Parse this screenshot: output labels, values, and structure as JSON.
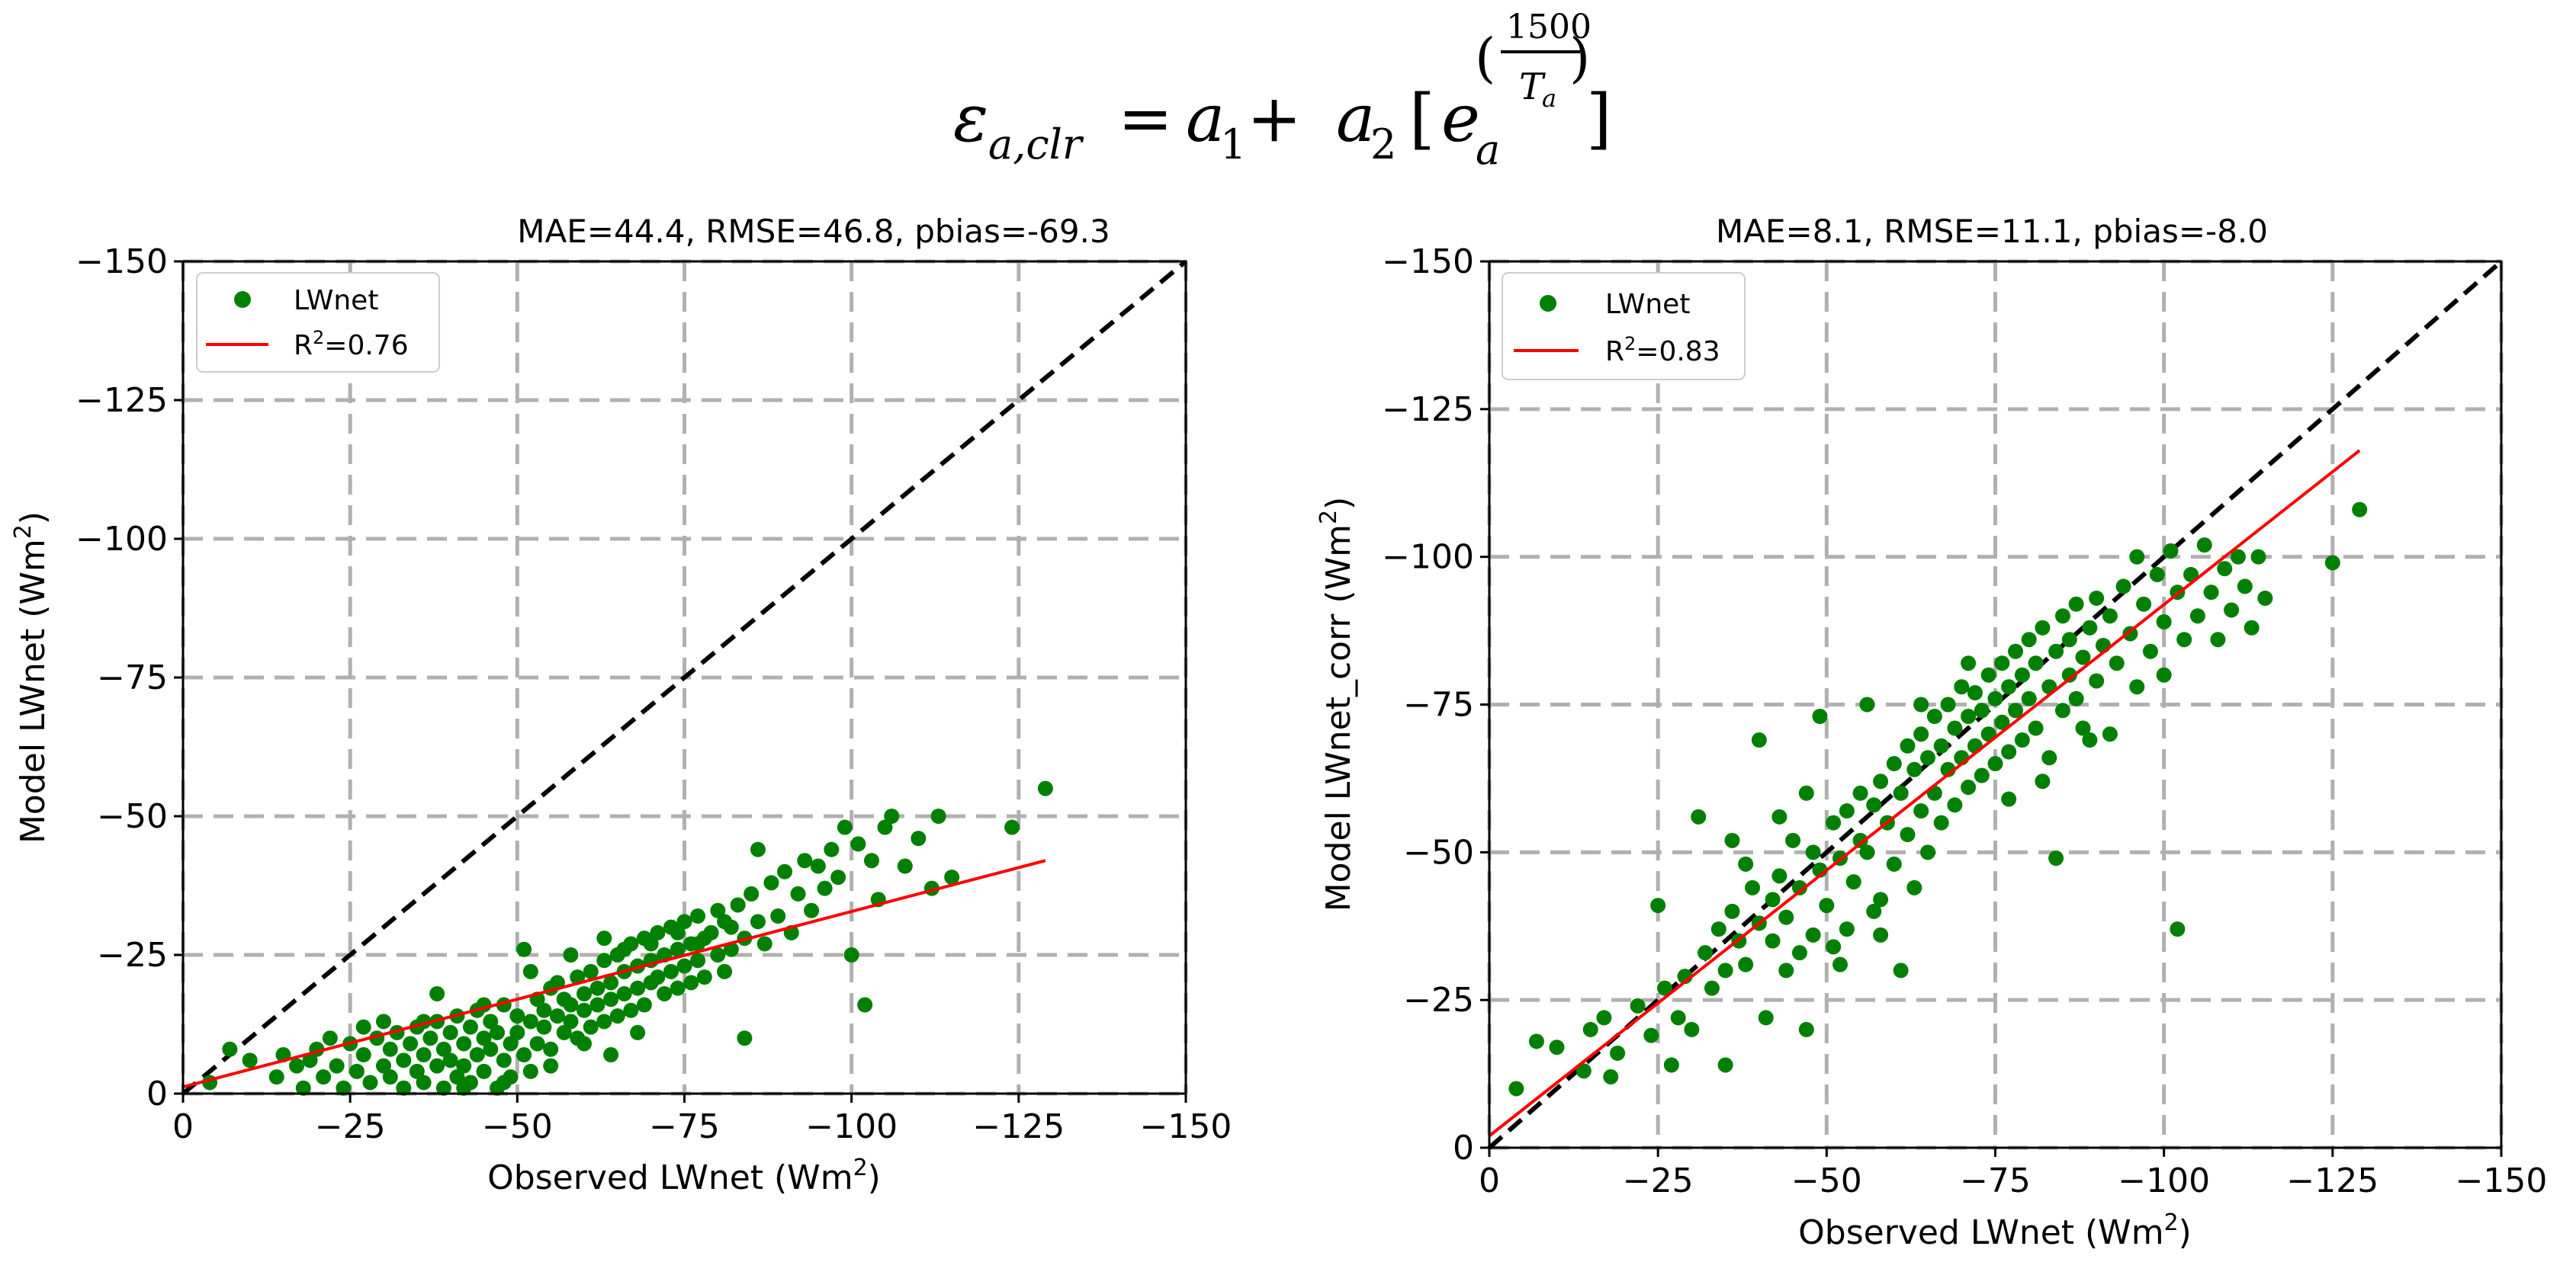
{
  "equation": {
    "lhs": "ε",
    "lhs_sub": "a,clr",
    "eq": "= ",
    "a1": "a",
    "a1_sub": "1",
    "plus": " + ",
    "a2": "a",
    "a2_sub": "2",
    "open_bracket": "[",
    "e": "e",
    "e_sub": "a",
    "exp_open": "(",
    "exp_num": "1500",
    "exp_den": "T",
    "exp_den_sub": "a",
    "exp_close": ")",
    "close_bracket": "]"
  },
  "colors": {
    "points": "#008000",
    "fit": "#ff0000",
    "identity": "#000000",
    "grid": "#b0b0b0"
  },
  "chart_data": [
    {
      "type": "scatter",
      "title": "MAE=44.4, RMSE=46.8, pbias=-69.3",
      "xlabel": "Observed LWnet (Wm",
      "ylabel": "Model LWnet (Wm",
      "label_sup": "2",
      "label_close": ")",
      "xlim": [
        0,
        -150
      ],
      "ylim": [
        0,
        -150
      ],
      "xticks": [
        0,
        -25,
        -50,
        -75,
        -100,
        -125,
        -150
      ],
      "yticks": [
        0,
        -25,
        -50,
        -75,
        -100,
        -125,
        -150
      ],
      "tick_labels": [
        "0",
        "−25",
        "−50",
        "−75",
        "−100",
        "−125",
        "−150"
      ],
      "grid": true,
      "legend": {
        "position": "top-left",
        "points_label": "LWnet",
        "fit_label_prefix": "R",
        "fit_label_sup": "2",
        "fit_label_suffix": "=0.76"
      },
      "fit_line": {
        "x": [
          0,
          -129
        ],
        "y": [
          -1.2,
          -42
        ]
      },
      "identity_line": {
        "x": [
          0,
          -150
        ],
        "y": [
          0,
          -150
        ]
      },
      "points": [
        [
          -4,
          -2
        ],
        [
          -7,
          -8
        ],
        [
          -10,
          -6
        ],
        [
          -14,
          -3
        ],
        [
          -15,
          -7
        ],
        [
          -17,
          -5
        ],
        [
          -18,
          -1
        ],
        [
          -19,
          -6
        ],
        [
          -20,
          -8
        ],
        [
          -21,
          -3
        ],
        [
          -23,
          -5
        ],
        [
          -24,
          -1
        ],
        [
          -25,
          -9
        ],
        [
          -26,
          -4
        ],
        [
          -27,
          -7
        ],
        [
          -28,
          -2
        ],
        [
          -29,
          -10
        ],
        [
          -30,
          -5
        ],
        [
          -31,
          -3
        ],
        [
          -31,
          -8
        ],
        [
          -32,
          -11
        ],
        [
          -33,
          -6
        ],
        [
          -33,
          -1
        ],
        [
          -34,
          -9
        ],
        [
          -35,
          -4
        ],
        [
          -35,
          -12
        ],
        [
          -36,
          -7
        ],
        [
          -36,
          -2
        ],
        [
          -37,
          -10
        ],
        [
          -38,
          -5
        ],
        [
          -38,
          -13
        ],
        [
          -39,
          -8
        ],
        [
          -39,
          -1
        ],
        [
          -40,
          -11
        ],
        [
          -40,
          -6
        ],
        [
          -41,
          -3
        ],
        [
          -41,
          -14
        ],
        [
          -42,
          -9
        ],
        [
          -42,
          -5
        ],
        [
          -43,
          -12
        ],
        [
          -43,
          -2
        ],
        [
          -44,
          -7
        ],
        [
          -44,
          -15
        ],
        [
          -45,
          -10
        ],
        [
          -45,
          -4
        ],
        [
          -46,
          -13
        ],
        [
          -46,
          -8
        ],
        [
          -47,
          -1
        ],
        [
          -47,
          -11
        ],
        [
          -48,
          -6
        ],
        [
          -48,
          -16
        ],
        [
          -49,
          -9
        ],
        [
          -49,
          -3
        ],
        [
          -50,
          -14
        ],
        [
          -50,
          -11
        ],
        [
          -51,
          -7
        ],
        [
          -51,
          -26
        ],
        [
          -52,
          -13
        ],
        [
          -52,
          -4
        ],
        [
          -53,
          -17
        ],
        [
          -53,
          -9
        ],
        [
          -54,
          -15
        ],
        [
          -54,
          -12
        ],
        [
          -55,
          -19
        ],
        [
          -55,
          -8
        ],
        [
          -56,
          -14
        ],
        [
          -56,
          -20
        ],
        [
          -57,
          -11
        ],
        [
          -57,
          -17
        ],
        [
          -58,
          -16
        ],
        [
          -58,
          -13
        ],
        [
          -59,
          -21
        ],
        [
          -59,
          -10
        ],
        [
          -60,
          -18
        ],
        [
          -60,
          -15
        ],
        [
          -61,
          -22
        ],
        [
          -61,
          -12
        ],
        [
          -62,
          -19
        ],
        [
          -62,
          -16
        ],
        [
          -63,
          -24
        ],
        [
          -63,
          -13
        ],
        [
          -64,
          -20
        ],
        [
          -64,
          -17
        ],
        [
          -65,
          -25
        ],
        [
          -65,
          -14
        ],
        [
          -66,
          -22
        ],
        [
          -66,
          -18
        ],
        [
          -67,
          -27
        ],
        [
          -67,
          -15
        ],
        [
          -68,
          -23
        ],
        [
          -68,
          -19
        ],
        [
          -69,
          -28
        ],
        [
          -69,
          -16
        ],
        [
          -70,
          -24
        ],
        [
          -70,
          -20
        ],
        [
          -71,
          -29
        ],
        [
          -71,
          -21
        ],
        [
          -72,
          -25
        ],
        [
          -72,
          -18
        ],
        [
          -73,
          -30
        ],
        [
          -73,
          -22
        ],
        [
          -74,
          -26
        ],
        [
          -74,
          -19
        ],
        [
          -75,
          -31
        ],
        [
          -75,
          -23
        ],
        [
          -76,
          -27
        ],
        [
          -76,
          -20
        ],
        [
          -77,
          -32
        ],
        [
          -77,
          -24
        ],
        [
          -78,
          -28
        ],
        [
          -78,
          -21
        ],
        [
          -79,
          -29
        ],
        [
          -80,
          -25
        ],
        [
          -80,
          -33
        ],
        [
          -81,
          -22
        ],
        [
          -82,
          -30
        ],
        [
          -82,
          -26
        ],
        [
          -83,
          -34
        ],
        [
          -84,
          -10
        ],
        [
          -84,
          -28
        ],
        [
          -85,
          -36
        ],
        [
          -86,
          -31
        ],
        [
          -86,
          -44
        ],
        [
          -87,
          -27
        ],
        [
          -88,
          -38
        ],
        [
          -89,
          -32
        ],
        [
          -90,
          -40
        ],
        [
          -91,
          -29
        ],
        [
          -92,
          -36
        ],
        [
          -93,
          -42
        ],
        [
          -94,
          -33
        ],
        [
          -95,
          -41
        ],
        [
          -96,
          -37
        ],
        [
          -97,
          -44
        ],
        [
          -98,
          -39
        ],
        [
          -99,
          -48
        ],
        [
          -100,
          -25
        ],
        [
          -101,
          -45
        ],
        [
          -102,
          -16
        ],
        [
          -103,
          -42
        ],
        [
          -104,
          -35
        ],
        [
          -105,
          -48
        ],
        [
          -106,
          -50
        ],
        [
          -108,
          -41
        ],
        [
          -110,
          -46
        ],
        [
          -112,
          -37
        ],
        [
          -113,
          -50
        ],
        [
          -115,
          -39
        ],
        [
          -124,
          -48
        ],
        [
          -129,
          -55
        ],
        [
          -38,
          -18
        ],
        [
          -45,
          -16
        ],
        [
          -52,
          -22
        ],
        [
          -58,
          -25
        ],
        [
          -63,
          -28
        ],
        [
          -66,
          -26
        ],
        [
          -70,
          -27
        ],
        [
          -74,
          -29
        ],
        [
          -77,
          -27
        ],
        [
          -81,
          -31
        ],
        [
          -60,
          -9
        ],
        [
          -55,
          -5
        ],
        [
          -48,
          -2
        ],
        [
          -42,
          -1
        ],
        [
          -36,
          -13
        ],
        [
          -30,
          -13
        ],
        [
          -27,
          -12
        ],
        [
          -22,
          -10
        ],
        [
          -64,
          -7
        ],
        [
          -68,
          -11
        ]
      ]
    },
    {
      "type": "scatter",
      "title": "MAE=8.1, RMSE=11.1, pbias=-8.0",
      "xlabel": "Observed LWnet (Wm",
      "ylabel": "Model LWnet_corr (Wm",
      "label_sup": "2",
      "label_close": ")",
      "xlim": [
        0,
        -150
      ],
      "ylim": [
        0,
        -150
      ],
      "xticks": [
        0,
        -25,
        -50,
        -75,
        -100,
        -125,
        -150
      ],
      "yticks": [
        0,
        -25,
        -50,
        -75,
        -100,
        -125,
        -150
      ],
      "tick_labels": [
        "0",
        "−25",
        "−50",
        "−75",
        "−100",
        "−125",
        "−150"
      ],
      "grid": true,
      "legend": {
        "position": "top-left",
        "points_label": "LWnet",
        "fit_label_prefix": "R",
        "fit_label_sup": "2",
        "fit_label_suffix": "=0.83"
      },
      "fit_line": {
        "x": [
          0,
          -129
        ],
        "y": [
          -2,
          -118
        ]
      },
      "identity_line": {
        "x": [
          0,
          -150
        ],
        "y": [
          0,
          -150
        ]
      },
      "points": [
        [
          -4,
          -10
        ],
        [
          -7,
          -18
        ],
        [
          -10,
          -17
        ],
        [
          -14,
          -13
        ],
        [
          -15,
          -20
        ],
        [
          -17,
          -22
        ],
        [
          -18,
          -12
        ],
        [
          -19,
          -16
        ],
        [
          -22,
          -24
        ],
        [
          -24,
          -19
        ],
        [
          -25,
          -41
        ],
        [
          -26,
          -27
        ],
        [
          -27,
          -14
        ],
        [
          -28,
          -22
        ],
        [
          -29,
          -29
        ],
        [
          -30,
          -20
        ],
        [
          -31,
          -56
        ],
        [
          -32,
          -33
        ],
        [
          -33,
          -27
        ],
        [
          -34,
          -37
        ],
        [
          -35,
          -30
        ],
        [
          -35,
          -14
        ],
        [
          -36,
          -40
        ],
        [
          -37,
          -35
        ],
        [
          -38,
          -48
        ],
        [
          -38,
          -31
        ],
        [
          -39,
          -44
        ],
        [
          -40,
          -69
        ],
        [
          -40,
          -38
        ],
        [
          -41,
          -22
        ],
        [
          -42,
          -42
        ],
        [
          -42,
          -35
        ],
        [
          -43,
          -46
        ],
        [
          -44,
          -30
        ],
        [
          -44,
          -39
        ],
        [
          -45,
          -52
        ],
        [
          -46,
          -33
        ],
        [
          -46,
          -44
        ],
        [
          -47,
          -20
        ],
        [
          -48,
          -50
        ],
        [
          -48,
          -36
        ],
        [
          -49,
          -73
        ],
        [
          -49,
          -47
        ],
        [
          -50,
          -41
        ],
        [
          -51,
          -55
        ],
        [
          -51,
          -34
        ],
        [
          -52,
          -49
        ],
        [
          -52,
          -31
        ],
        [
          -53,
          -57
        ],
        [
          -54,
          -45
        ],
        [
          -55,
          -52
        ],
        [
          -55,
          -60
        ],
        [
          -56,
          -75
        ],
        [
          -56,
          -50
        ],
        [
          -57,
          -58
        ],
        [
          -57,
          -40
        ],
        [
          -58,
          -62
        ],
        [
          -58,
          -36
        ],
        [
          -59,
          -55
        ],
        [
          -60,
          -65
        ],
        [
          -60,
          -48
        ],
        [
          -61,
          -60
        ],
        [
          -61,
          -30
        ],
        [
          -62,
          -68
        ],
        [
          -62,
          -53
        ],
        [
          -63,
          -64
        ],
        [
          -63,
          -44
        ],
        [
          -64,
          -70
        ],
        [
          -64,
          -57
        ],
        [
          -65,
          -66
        ],
        [
          -65,
          -50
        ],
        [
          -66,
          -73
        ],
        [
          -66,
          -60
        ],
        [
          -67,
          -68
        ],
        [
          -67,
          -55
        ],
        [
          -68,
          -75
        ],
        [
          -68,
          -64
        ],
        [
          -69,
          -71
        ],
        [
          -69,
          -58
        ],
        [
          -70,
          -78
        ],
        [
          -70,
          -66
        ],
        [
          -71,
          -73
        ],
        [
          -71,
          -61
        ],
        [
          -72,
          -77
        ],
        [
          -72,
          -68
        ],
        [
          -73,
          -74
        ],
        [
          -73,
          -63
        ],
        [
          -74,
          -80
        ],
        [
          -74,
          -70
        ],
        [
          -75,
          -76
        ],
        [
          -75,
          -65
        ],
        [
          -76,
          -82
        ],
        [
          -76,
          -72
        ],
        [
          -77,
          -78
        ],
        [
          -77,
          -67
        ],
        [
          -78,
          -84
        ],
        [
          -78,
          -74
        ],
        [
          -79,
          -80
        ],
        [
          -79,
          -69
        ],
        [
          -80,
          -86
        ],
        [
          -80,
          -76
        ],
        [
          -81,
          -82
        ],
        [
          -81,
          -71
        ],
        [
          -82,
          -88
        ],
        [
          -83,
          -78
        ],
        [
          -83,
          -66
        ],
        [
          -84,
          -49
        ],
        [
          -84,
          -84
        ],
        [
          -85,
          -90
        ],
        [
          -85,
          -74
        ],
        [
          -86,
          -86
        ],
        [
          -86,
          -80
        ],
        [
          -87,
          -92
        ],
        [
          -87,
          -76
        ],
        [
          -88,
          -83
        ],
        [
          -88,
          -71
        ],
        [
          -89,
          -88
        ],
        [
          -90,
          -79
        ],
        [
          -90,
          -93
        ],
        [
          -91,
          -85
        ],
        [
          -92,
          -70
        ],
        [
          -92,
          -90
        ],
        [
          -93,
          -82
        ],
        [
          -94,
          -95
        ],
        [
          -95,
          -87
        ],
        [
          -96,
          -78
        ],
        [
          -96,
          -100
        ],
        [
          -97,
          -92
        ],
        [
          -98,
          -84
        ],
        [
          -99,
          -97
        ],
        [
          -100,
          -89
        ],
        [
          -100,
          -80
        ],
        [
          -101,
          -101
        ],
        [
          -102,
          -37
        ],
        [
          -102,
          -94
        ],
        [
          -103,
          -86
        ],
        [
          -104,
          -97
        ],
        [
          -105,
          -90
        ],
        [
          -106,
          -102
        ],
        [
          -107,
          -94
        ],
        [
          -108,
          -86
        ],
        [
          -109,
          -98
        ],
        [
          -110,
          -91
        ],
        [
          -111,
          -100
        ],
        [
          -112,
          -95
        ],
        [
          -113,
          -88
        ],
        [
          -114,
          -100
        ],
        [
          -115,
          -93
        ],
        [
          -125,
          -99
        ],
        [
          -129,
          -108
        ],
        [
          -36,
          -52
        ],
        [
          -43,
          -56
        ],
        [
          -47,
          -60
        ],
        [
          -53,
          -37
        ],
        [
          -58,
          -42
        ],
        [
          -64,
          -75
        ],
        [
          -71,
          -82
        ],
        [
          -77,
          -59
        ],
        [
          -82,
          -62
        ],
        [
          -89,
          -69
        ]
      ]
    }
  ]
}
